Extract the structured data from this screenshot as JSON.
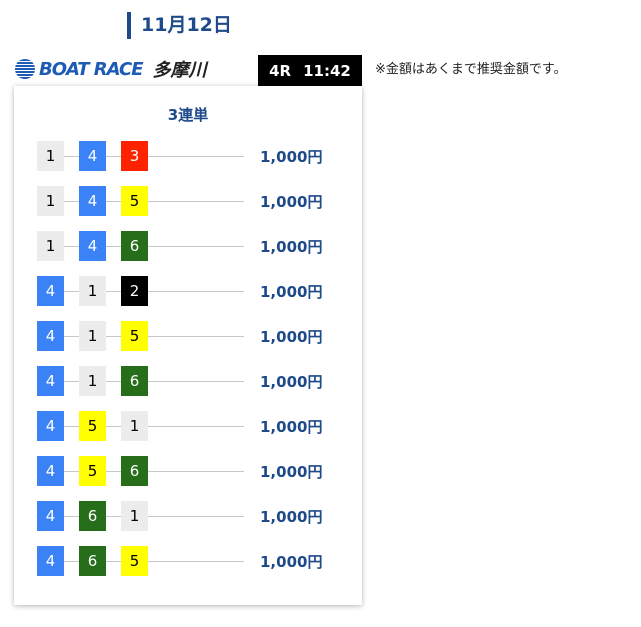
{
  "header": {
    "date": "11月12日",
    "logo_text": "BOAT RACE",
    "venue": "多摩川",
    "race": "4R",
    "time": "11:42",
    "note": "※金額はあくまで推奨金額です。"
  },
  "bet_type": "3連単",
  "boat_colors": {
    "1": {
      "bg": "#ececec",
      "fg": "#000"
    },
    "2": {
      "bg": "#000000",
      "fg": "#fff"
    },
    "3": {
      "bg": "#ff2200",
      "fg": "#fff"
    },
    "4": {
      "bg": "#3a82f6",
      "fg": "#fff"
    },
    "5": {
      "bg": "#ffff00",
      "fg": "#000"
    },
    "6": {
      "bg": "#266e1a",
      "fg": "#fff"
    }
  },
  "bets": [
    {
      "combo": [
        "1",
        "4",
        "3"
      ],
      "amount": "1,000円"
    },
    {
      "combo": [
        "1",
        "4",
        "5"
      ],
      "amount": "1,000円"
    },
    {
      "combo": [
        "1",
        "4",
        "6"
      ],
      "amount": "1,000円"
    },
    {
      "combo": [
        "4",
        "1",
        "2"
      ],
      "amount": "1,000円"
    },
    {
      "combo": [
        "4",
        "1",
        "5"
      ],
      "amount": "1,000円"
    },
    {
      "combo": [
        "4",
        "1",
        "6"
      ],
      "amount": "1,000円"
    },
    {
      "combo": [
        "4",
        "5",
        "1"
      ],
      "amount": "1,000円"
    },
    {
      "combo": [
        "4",
        "5",
        "6"
      ],
      "amount": "1,000円"
    },
    {
      "combo": [
        "4",
        "6",
        "1"
      ],
      "amount": "1,000円"
    },
    {
      "combo": [
        "4",
        "6",
        "5"
      ],
      "amount": "1,000円"
    }
  ]
}
